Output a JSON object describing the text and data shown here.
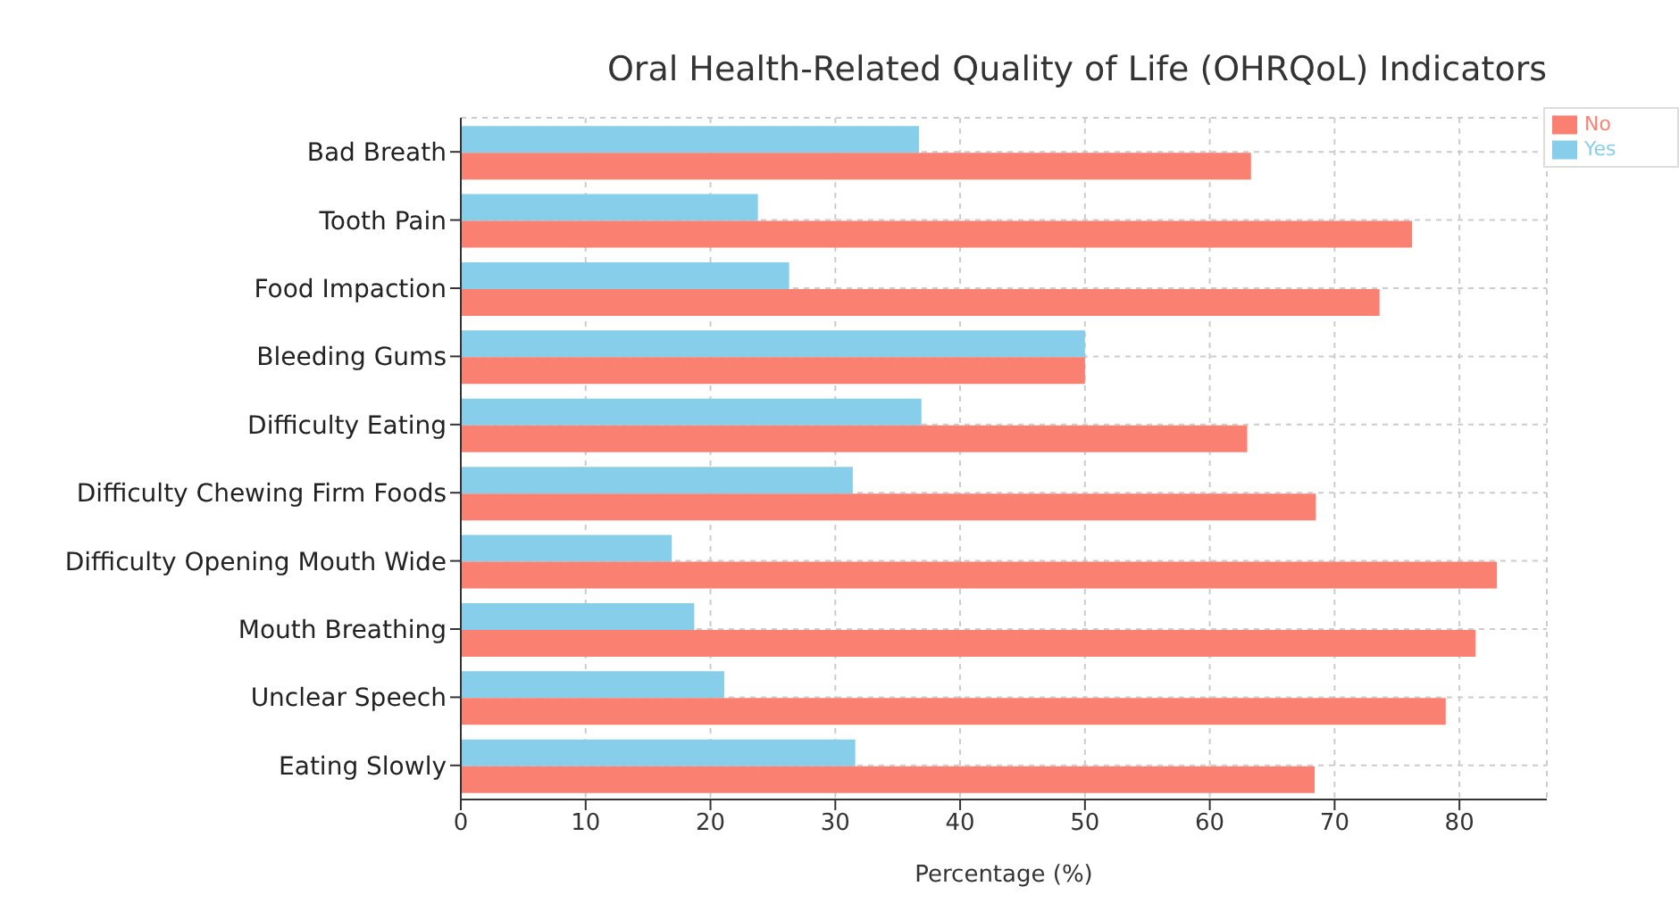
{
  "chart_data": {
    "type": "bar",
    "orientation": "horizontal",
    "title": "Oral Health-Related Quality of Life (OHRQoL) Indicators",
    "xlabel": "Percentage (%)",
    "categories": [
      "Bad Breath",
      "Tooth Pain",
      "Food Impaction",
      "Bleeding Gums",
      "Difficulty Eating",
      "Difficulty Chewing Firm Foods",
      "Difficulty Opening Mouth Wide",
      "Mouth Breathing",
      "Unclear Speech",
      "Eating Slowly"
    ],
    "series": [
      {
        "name": "Yes",
        "color": "#87ceeb",
        "values": [
          36.7,
          23.8,
          26.3,
          50,
          36.9,
          31.4,
          16.9,
          18.7,
          21.1,
          31.6
        ]
      },
      {
        "name": "No",
        "color": "#fa8072",
        "values": [
          63.3,
          76.2,
          73.6,
          50,
          63.0,
          68.5,
          83.0,
          81.3,
          78.9,
          68.4
        ]
      }
    ],
    "xlim": [
      0,
      87
    ],
    "xticks": [
      0,
      10,
      20,
      30,
      40,
      50,
      60,
      70,
      80
    ],
    "grid": true,
    "legend": "top right"
  }
}
